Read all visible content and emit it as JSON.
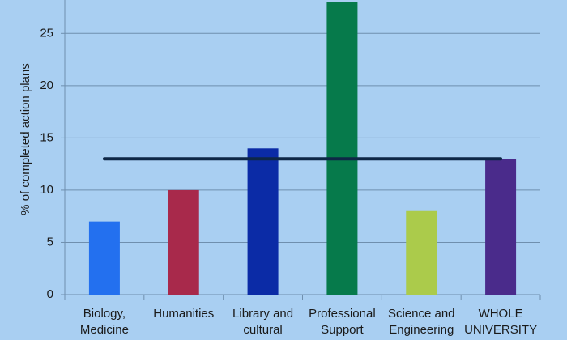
{
  "chart_data": {
    "type": "bar",
    "y_label": "% of completed action plans",
    "categories": [
      "Biology, Medicine",
      "Humanities",
      "Library and cultural",
      "Professional Support",
      "Science and Engineering",
      "WHOLE UNIVERSITY"
    ],
    "values": [
      7,
      10,
      14,
      28,
      8,
      13
    ],
    "colors": [
      "#2370ef",
      "#a8294b",
      "#0b2ba6",
      "#067a4b",
      "#abcb4b",
      "#4a2b8b"
    ],
    "reference_line": {
      "value": 13,
      "color": "#0e2746"
    },
    "ylim": [
      0,
      28.2
    ],
    "yticks": [
      0,
      5,
      10,
      15,
      20,
      25
    ],
    "grid": true
  }
}
